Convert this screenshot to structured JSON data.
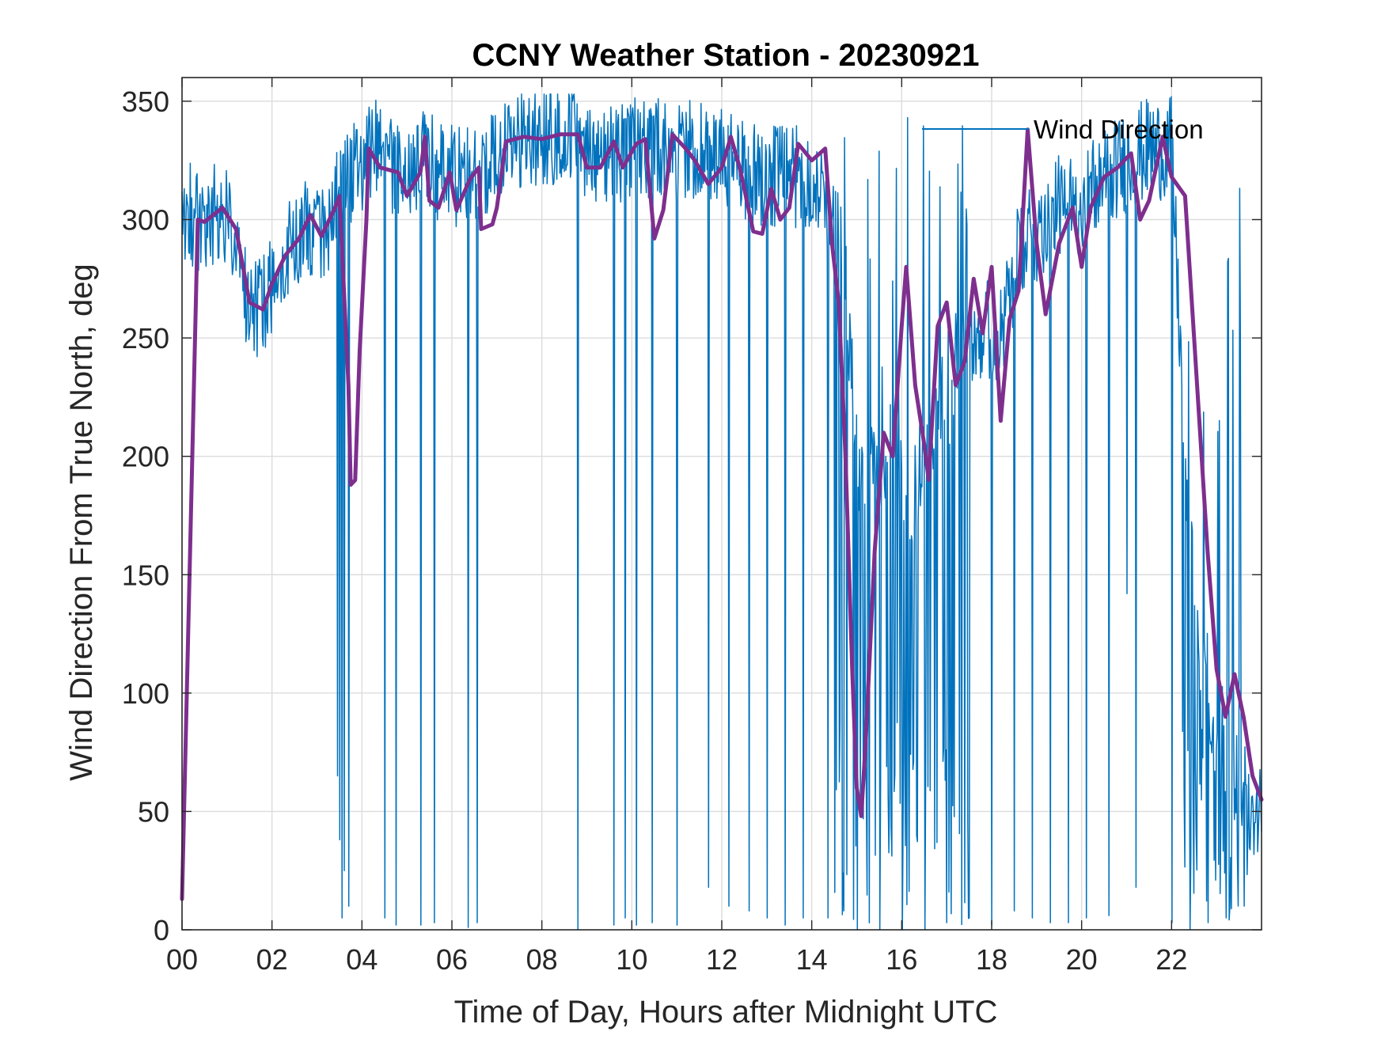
{
  "chart_data": {
    "type": "line",
    "title": "CCNY Weather Station - 20230921",
    "xlabel": "Time of Day, Hours after Midnight UTC",
    "ylabel": "Wind Direction From True North, deg",
    "xlim": [
      0,
      24
    ],
    "ylim": [
      0,
      360
    ],
    "x_ticks": [
      0,
      2,
      4,
      6,
      8,
      10,
      12,
      14,
      16,
      18,
      20,
      22
    ],
    "x_tick_labels": [
      "00",
      "02",
      "04",
      "06",
      "08",
      "10",
      "12",
      "14",
      "16",
      "18",
      "20",
      "22"
    ],
    "y_ticks": [
      0,
      50,
      100,
      150,
      200,
      250,
      300,
      350
    ],
    "y_tick_labels": [
      "0",
      "50",
      "100",
      "150",
      "200",
      "250",
      "300",
      "350"
    ],
    "grid": true,
    "legend": {
      "position": "top-right",
      "entries": [
        "Wind Direction"
      ]
    },
    "colors": {
      "raw": "#0072BD",
      "smoothed": "#7E2F8E",
      "axes": "#262626",
      "grid": "#dcdcdc"
    },
    "series": [
      {
        "name": "Wind Direction",
        "style": "thin-noisy",
        "color": "#0072BD",
        "sampling_interval_hours": 0.0167,
        "profile": [
          [
            0.0,
            305
          ],
          [
            0.3,
            300
          ],
          [
            0.5,
            300
          ],
          [
            0.9,
            304
          ],
          [
            1.2,
            290
          ],
          [
            1.4,
            268
          ],
          [
            1.6,
            262
          ],
          [
            1.9,
            268
          ],
          [
            2.2,
            283
          ],
          [
            2.5,
            292
          ],
          [
            2.8,
            298
          ],
          [
            3.1,
            296
          ],
          [
            3.4,
            305
          ],
          [
            3.6,
            312
          ],
          [
            3.9,
            322
          ],
          [
            4.2,
            330
          ],
          [
            4.6,
            325
          ],
          [
            5.0,
            318
          ],
          [
            5.4,
            325
          ],
          [
            6.0,
            318
          ],
          [
            6.6,
            316
          ],
          [
            7.0,
            325
          ],
          [
            7.3,
            334
          ],
          [
            8.0,
            335
          ],
          [
            8.5,
            336
          ],
          [
            9.0,
            330
          ],
          [
            9.5,
            328
          ],
          [
            10.0,
            330
          ],
          [
            10.5,
            329
          ],
          [
            11.0,
            330
          ],
          [
            11.5,
            328
          ],
          [
            12.0,
            325
          ],
          [
            12.5,
            322
          ],
          [
            13.0,
            318
          ],
          [
            13.5,
            318
          ],
          [
            14.0,
            318
          ],
          [
            14.4,
            305
          ],
          [
            14.7,
            290
          ],
          [
            15.0,
            200
          ],
          [
            15.4,
            190
          ],
          [
            15.8,
            210
          ],
          [
            16.2,
            180
          ],
          [
            16.6,
            200
          ],
          [
            17.0,
            230
          ],
          [
            17.4,
            250
          ],
          [
            17.8,
            255
          ],
          [
            18.2,
            250
          ],
          [
            18.6,
            285
          ],
          [
            19.0,
            295
          ],
          [
            19.4,
            305
          ],
          [
            19.8,
            305
          ],
          [
            20.2,
            312
          ],
          [
            20.6,
            318
          ],
          [
            21.0,
            325
          ],
          [
            21.5,
            330
          ],
          [
            22.0,
            330
          ],
          [
            22.3,
            200
          ],
          [
            22.6,
            120
          ],
          [
            23.0,
            90
          ],
          [
            23.5,
            60
          ],
          [
            24.0,
            50
          ]
        ],
        "noise_band_deg": 22,
        "drop_events": [
          [
            3.45,
            65
          ],
          [
            3.5,
            38
          ],
          [
            3.55,
            5
          ],
          [
            3.6,
            25
          ],
          [
            3.7,
            10
          ],
          [
            4.5,
            5
          ],
          [
            4.75,
            2
          ],
          [
            5.3,
            2
          ],
          [
            5.6,
            3
          ],
          [
            6.35,
            1
          ],
          [
            6.55,
            3
          ],
          [
            8.8,
            0
          ],
          [
            9.6,
            2
          ],
          [
            9.85,
            5
          ],
          [
            10.1,
            2
          ],
          [
            10.45,
            3
          ],
          [
            11.0,
            2
          ],
          [
            11.7,
            18
          ],
          [
            12.15,
            10
          ],
          [
            12.6,
            8
          ],
          [
            13.0,
            5
          ],
          [
            13.4,
            2
          ],
          [
            13.8,
            5
          ],
          [
            14.35,
            5
          ],
          [
            14.7,
            8
          ],
          [
            15.0,
            0
          ],
          [
            15.5,
            0
          ],
          [
            16.0,
            0
          ],
          [
            16.5,
            0
          ],
          [
            17.0,
            3
          ],
          [
            17.5,
            5
          ],
          [
            18.0,
            2
          ],
          [
            18.5,
            8
          ],
          [
            18.9,
            5
          ],
          [
            19.3,
            3
          ],
          [
            19.7,
            3
          ],
          [
            20.1,
            5
          ],
          [
            20.6,
            6
          ],
          [
            21.0,
            142
          ],
          [
            21.2,
            18
          ],
          [
            22.0,
            3
          ],
          [
            22.4,
            0
          ],
          [
            22.8,
            3
          ],
          [
            23.2,
            5
          ],
          [
            23.6,
            10
          ]
        ],
        "dense_low_intervals": [
          [
            14.5,
            17.5
          ],
          [
            22.2,
            23.8
          ]
        ]
      },
      {
        "style": "smoothed",
        "color": "#7E2F8E",
        "points": [
          [
            0.0,
            13
          ],
          [
            0.35,
            300
          ],
          [
            0.5,
            299
          ],
          [
            0.9,
            305
          ],
          [
            1.2,
            296
          ],
          [
            1.5,
            265
          ],
          [
            1.8,
            262
          ],
          [
            2.0,
            273
          ],
          [
            2.3,
            285
          ],
          [
            2.6,
            292
          ],
          [
            2.85,
            302
          ],
          [
            3.1,
            293
          ],
          [
            3.4,
            305
          ],
          [
            3.5,
            310
          ],
          [
            3.6,
            270
          ],
          [
            3.7,
            230
          ],
          [
            3.75,
            188
          ],
          [
            3.85,
            190
          ],
          [
            3.95,
            245
          ],
          [
            4.1,
            300
          ],
          [
            4.15,
            330
          ],
          [
            4.4,
            322
          ],
          [
            4.8,
            320
          ],
          [
            5.0,
            310
          ],
          [
            5.3,
            320
          ],
          [
            5.4,
            335
          ],
          [
            5.5,
            308
          ],
          [
            5.7,
            305
          ],
          [
            5.95,
            320
          ],
          [
            6.1,
            304
          ],
          [
            6.4,
            317
          ],
          [
            6.6,
            322
          ],
          [
            6.65,
            296
          ],
          [
            6.9,
            298
          ],
          [
            7.0,
            305
          ],
          [
            7.2,
            333
          ],
          [
            7.6,
            335
          ],
          [
            8.0,
            334
          ],
          [
            8.4,
            336
          ],
          [
            8.8,
            336
          ],
          [
            9.0,
            322
          ],
          [
            9.3,
            322
          ],
          [
            9.6,
            333
          ],
          [
            9.8,
            322
          ],
          [
            10.1,
            332
          ],
          [
            10.3,
            334
          ],
          [
            10.5,
            292
          ],
          [
            10.7,
            304
          ],
          [
            10.9,
            336
          ],
          [
            11.2,
            330
          ],
          [
            11.4,
            325
          ],
          [
            11.7,
            315
          ],
          [
            12.0,
            322
          ],
          [
            12.2,
            335
          ],
          [
            12.4,
            322
          ],
          [
            12.7,
            295
          ],
          [
            12.9,
            294
          ],
          [
            13.1,
            313
          ],
          [
            13.3,
            300
          ],
          [
            13.5,
            305
          ],
          [
            13.7,
            332
          ],
          [
            14.0,
            325
          ],
          [
            14.3,
            330
          ],
          [
            14.45,
            290
          ],
          [
            14.6,
            265
          ],
          [
            14.75,
            200
          ],
          [
            14.9,
            110
          ],
          [
            15.0,
            60
          ],
          [
            15.1,
            48
          ],
          [
            15.2,
            80
          ],
          [
            15.4,
            160
          ],
          [
            15.6,
            210
          ],
          [
            15.8,
            200
          ],
          [
            16.0,
            255
          ],
          [
            16.1,
            280
          ],
          [
            16.3,
            230
          ],
          [
            16.5,
            205
          ],
          [
            16.6,
            190
          ],
          [
            16.8,
            255
          ],
          [
            17.0,
            265
          ],
          [
            17.2,
            230
          ],
          [
            17.4,
            240
          ],
          [
            17.6,
            275
          ],
          [
            17.8,
            252
          ],
          [
            18.0,
            280
          ],
          [
            18.2,
            215
          ],
          [
            18.4,
            258
          ],
          [
            18.6,
            270
          ],
          [
            18.8,
            338
          ],
          [
            19.0,
            290
          ],
          [
            19.2,
            260
          ],
          [
            19.5,
            290
          ],
          [
            19.8,
            305
          ],
          [
            20.0,
            280
          ],
          [
            20.2,
            305
          ],
          [
            20.5,
            318
          ],
          [
            20.8,
            322
          ],
          [
            21.1,
            328
          ],
          [
            21.3,
            300
          ],
          [
            21.5,
            308
          ],
          [
            21.8,
            335
          ],
          [
            22.0,
            318
          ],
          [
            22.3,
            310
          ],
          [
            22.5,
            250
          ],
          [
            22.8,
            160
          ],
          [
            23.0,
            110
          ],
          [
            23.2,
            90
          ],
          [
            23.4,
            108
          ],
          [
            23.6,
            90
          ],
          [
            23.8,
            65
          ],
          [
            24.0,
            55
          ]
        ]
      }
    ]
  }
}
